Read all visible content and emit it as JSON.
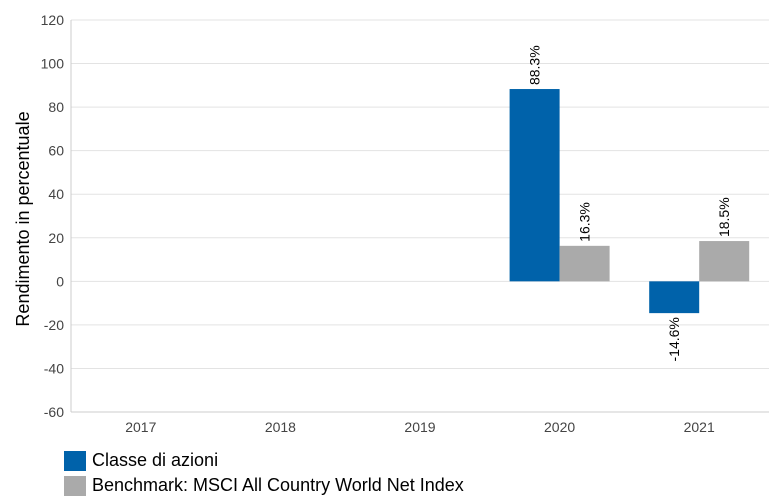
{
  "chart_data": {
    "type": "bar",
    "categories": [
      "2017",
      "2018",
      "2019",
      "2020",
      "2021"
    ],
    "series": [
      {
        "name": "Classe di azioni",
        "color": "#0062AA",
        "values": [
          null,
          null,
          null,
          88.3,
          -14.6
        ],
        "labels": [
          null,
          null,
          null,
          "88.3%",
          "-14.6%"
        ]
      },
      {
        "name": "Benchmark: MSCI All Country World Net Index",
        "color": "#AAAAAA",
        "values": [
          null,
          null,
          null,
          16.3,
          18.5
        ],
        "labels": [
          null,
          null,
          null,
          "16.3%",
          "18.5%"
        ]
      }
    ],
    "ylabel": "Rendimento in percentuale",
    "ylim": [
      -60,
      120
    ],
    "yticks": [
      "120",
      "100",
      "80",
      "60",
      "40",
      "20",
      "0",
      "-20",
      "-40",
      "-60"
    ],
    "grid": true,
    "legend_position": "bottom-left"
  }
}
